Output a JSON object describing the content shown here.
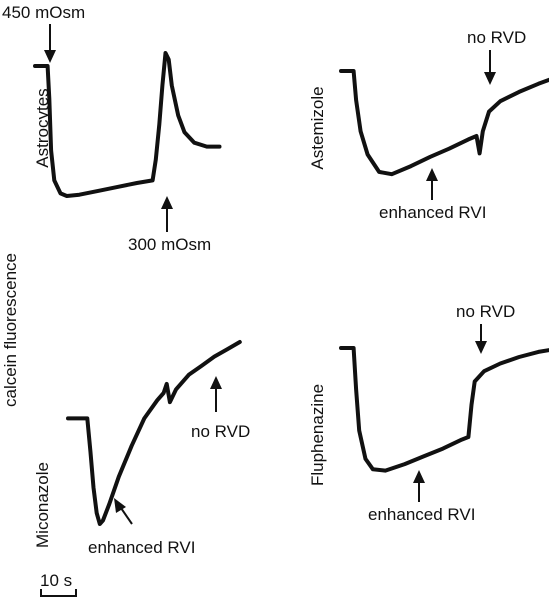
{
  "figure": {
    "y_axis_label": "calcein fluorescence",
    "scale_bar_label": "10 s"
  },
  "chart_data": [
    {
      "type": "line",
      "panel_label": "Astrocytes",
      "x_unit": "s",
      "points": [
        [
          0,
          1.0
        ],
        [
          3.6,
          1.0
        ],
        [
          4.1,
          0.75
        ],
        [
          4.6,
          0.35
        ],
        [
          5.5,
          0.12
        ],
        [
          7.3,
          0.02
        ],
        [
          9.1,
          0.0
        ],
        [
          12.7,
          0.01
        ],
        [
          18.2,
          0.04
        ],
        [
          23.6,
          0.07
        ],
        [
          29.1,
          0.1
        ],
        [
          33.6,
          0.12
        ],
        [
          34.5,
          0.28
        ],
        [
          35.5,
          0.55
        ],
        [
          36.4,
          0.85
        ],
        [
          37.3,
          1.1
        ],
        [
          38.2,
          1.05
        ],
        [
          39.1,
          0.85
        ],
        [
          40.9,
          0.62
        ],
        [
          42.7,
          0.49
        ],
        [
          45.5,
          0.41
        ],
        [
          49.1,
          0.38
        ],
        [
          52.7,
          0.38
        ]
      ],
      "annotations": [
        {
          "text": "450 mOsm",
          "at_x": 3.6,
          "side": "above"
        },
        {
          "text": "300 mOsm",
          "at_x": 33.6,
          "side": "below"
        }
      ]
    },
    {
      "type": "line",
      "panel_label": "Astemizole",
      "x_unit": "s",
      "points": [
        [
          0,
          1.0
        ],
        [
          3.6,
          1.0
        ],
        [
          4.3,
          0.75
        ],
        [
          5.6,
          0.48
        ],
        [
          7.6,
          0.28
        ],
        [
          10.9,
          0.13
        ],
        [
          14.5,
          0.11
        ],
        [
          20.0,
          0.18
        ],
        [
          25.5,
          0.26
        ],
        [
          30.9,
          0.33
        ],
        [
          36.4,
          0.41
        ],
        [
          38.7,
          0.44
        ],
        [
          39.6,
          0.29
        ],
        [
          40.5,
          0.48
        ],
        [
          42.3,
          0.65
        ],
        [
          45.5,
          0.74
        ],
        [
          50.9,
          0.82
        ],
        [
          56.4,
          0.89
        ],
        [
          61.8,
          0.95
        ],
        [
          65.5,
          0.99
        ]
      ],
      "annotations": [
        {
          "text": "no RVD",
          "at_x": 49.1,
          "side": "above"
        },
        {
          "text": "enhanced RVI",
          "at_x": 29.1,
          "side": "below"
        }
      ]
    },
    {
      "type": "line",
      "panel_label": "Miconazole",
      "x_unit": "s",
      "points": [
        [
          0,
          0.58
        ],
        [
          5.5,
          0.58
        ],
        [
          6.4,
          0.4
        ],
        [
          7.3,
          0.2
        ],
        [
          8.2,
          0.06
        ],
        [
          9.1,
          0.0
        ],
        [
          10.0,
          0.02
        ],
        [
          11.8,
          0.11
        ],
        [
          14.5,
          0.26
        ],
        [
          18.2,
          0.43
        ],
        [
          21.8,
          0.58
        ],
        [
          25.5,
          0.68
        ],
        [
          27.3,
          0.72
        ],
        [
          28.2,
          0.77
        ],
        [
          29.1,
          0.67
        ],
        [
          30.9,
          0.74
        ],
        [
          34.5,
          0.82
        ],
        [
          38.2,
          0.87
        ],
        [
          41.8,
          0.92
        ],
        [
          45.5,
          0.96
        ],
        [
          49.1,
          1.0
        ]
      ],
      "annotations": [
        {
          "text": "no RVD",
          "at_x": 32.7,
          "side": "below"
        },
        {
          "text": "enhanced RVI",
          "at_x": 14.5,
          "side": "below"
        }
      ]
    },
    {
      "type": "line",
      "panel_label": "Fluphenazine",
      "x_unit": "s",
      "points": [
        [
          0,
          1.0
        ],
        [
          3.6,
          1.0
        ],
        [
          4.3,
          0.68
        ],
        [
          5.2,
          0.36
        ],
        [
          7.0,
          0.14
        ],
        [
          9.1,
          0.06
        ],
        [
          12.7,
          0.05
        ],
        [
          18.2,
          0.1
        ],
        [
          23.6,
          0.16
        ],
        [
          29.1,
          0.22
        ],
        [
          34.5,
          0.29
        ],
        [
          36.4,
          0.31
        ],
        [
          37.3,
          0.56
        ],
        [
          38.2,
          0.74
        ],
        [
          40.9,
          0.82
        ],
        [
          45.5,
          0.88
        ],
        [
          50.9,
          0.93
        ],
        [
          56.4,
          0.97
        ],
        [
          60.9,
          0.99
        ]
      ],
      "annotations": [
        {
          "text": "no RVD",
          "at_x": 38.2,
          "side": "above"
        },
        {
          "text": "enhanced RVI",
          "at_x": 23.6,
          "side": "below"
        }
      ]
    }
  ]
}
